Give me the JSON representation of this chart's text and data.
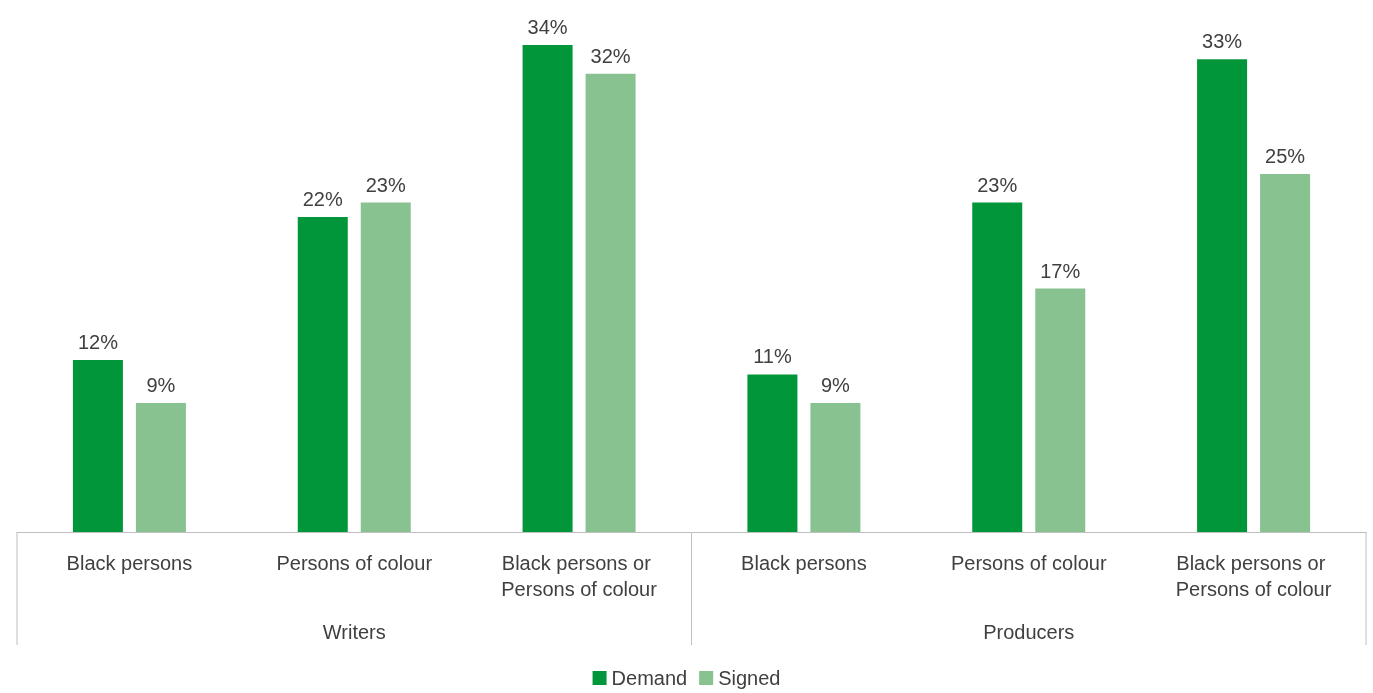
{
  "chart_data": {
    "type": "bar",
    "categories": [
      "Black persons",
      "Persons of colour",
      "Black persons or Persons of colour",
      "Black persons",
      "Persons of colour",
      "Black persons or Persons of colour"
    ],
    "annotations": [
      "Writers",
      "Producers"
    ],
    "series": [
      {
        "name": "Demand",
        "color": "#009639",
        "values": [
          12,
          22,
          34,
          11,
          23,
          33
        ],
        "value_labels": [
          "12%",
          "22%",
          "34%",
          "11%",
          "23%",
          "33%"
        ]
      },
      {
        "name": "Signed",
        "color": "#88c290",
        "values": [
          9,
          23,
          32,
          9,
          17,
          25
        ],
        "value_labels": [
          "9%",
          "23%",
          "32%",
          "9%",
          "17%",
          "25%"
        ]
      }
    ],
    "legend": "bottom"
  }
}
